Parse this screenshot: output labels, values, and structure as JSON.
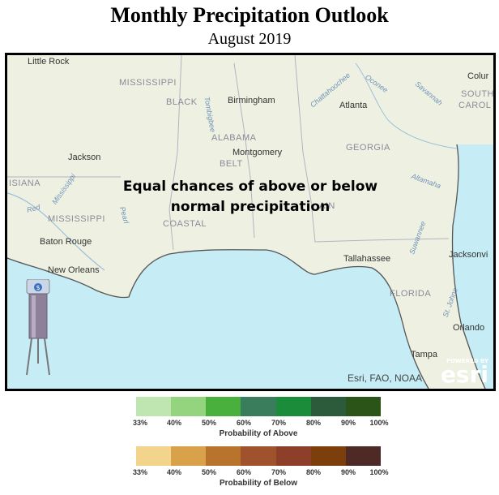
{
  "header": {
    "title": "Monthly Precipitation Outlook",
    "subtitle": "August 2019"
  },
  "map": {
    "message_line1": "Equal chances of above or below",
    "message_line2": "normal precipitation",
    "attribution": "Esri, FAO, NOAA",
    "logo_powered": "POWERED BY",
    "logo_word": "esri",
    "states": [
      "MISSISSIPPI",
      "ALABAMA",
      "GEORGIA",
      "ISIANA",
      "MISSISSIPPI",
      "FLORIDA",
      "SOUTH",
      "CAROL",
      "BLACK",
      "BELT",
      "COASTAL",
      "AIN"
    ],
    "cities": [
      "Little Rock",
      "Birmingham",
      "Atlanta",
      "Colur",
      "Jackson",
      "Montgomery",
      "Baton Rouge",
      "New Orleans",
      "Tallahassee",
      "Jacksonvi",
      "Orlando",
      "Tampa"
    ],
    "rivers": [
      "Tombigbee",
      "Chattahoochee",
      "Oconee",
      "Savannah",
      "Altamaha",
      "Mississippi",
      "Pearl",
      "Red",
      "Suwannee",
      "St. Johns"
    ],
    "gauge_label": "$"
  },
  "legend_above": {
    "caption": "Probability of Above",
    "colors": [
      "#bfe5b0",
      "#94d47f",
      "#49b03e",
      "#3a7d5c",
      "#1a8c3a",
      "#2c5b3b",
      "#2b5418"
    ]
  },
  "legend_below": {
    "caption": "Probability of Below",
    "colors": [
      "#f2d48c",
      "#d9a24a",
      "#b8732c",
      "#a0522d",
      "#8e3f2a",
      "#7c3f0c",
      "#4e2a26"
    ]
  },
  "tick_labels": [
    "33%",
    "40%",
    "50%",
    "60%",
    "70%",
    "80%",
    "90%",
    "100%"
  ]
}
